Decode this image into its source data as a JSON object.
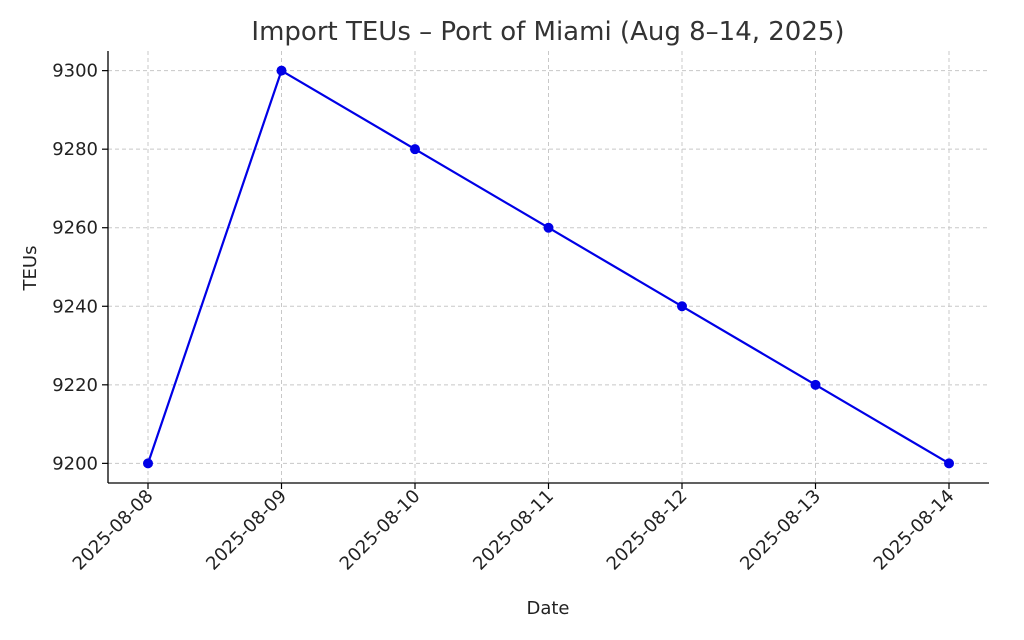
{
  "chart_data": {
    "type": "line",
    "title": "Import TEUs – Port of Miami (Aug 8–14, 2025)",
    "xlabel": "Date",
    "ylabel": "TEUs",
    "categories": [
      "2025-08-08",
      "2025-08-09",
      "2025-08-10",
      "2025-08-11",
      "2025-08-12",
      "2025-08-13",
      "2025-08-14"
    ],
    "series": [
      {
        "values": [
          9200,
          9300,
          9280,
          9260,
          9240,
          9220,
          9200
        ],
        "color": "#0000e6",
        "marker": "circle"
      }
    ],
    "y_ticks": [
      9200,
      9220,
      9240,
      9260,
      9280,
      9300
    ],
    "ylim": [
      9195,
      9305
    ],
    "grid": true,
    "legend": "none"
  }
}
